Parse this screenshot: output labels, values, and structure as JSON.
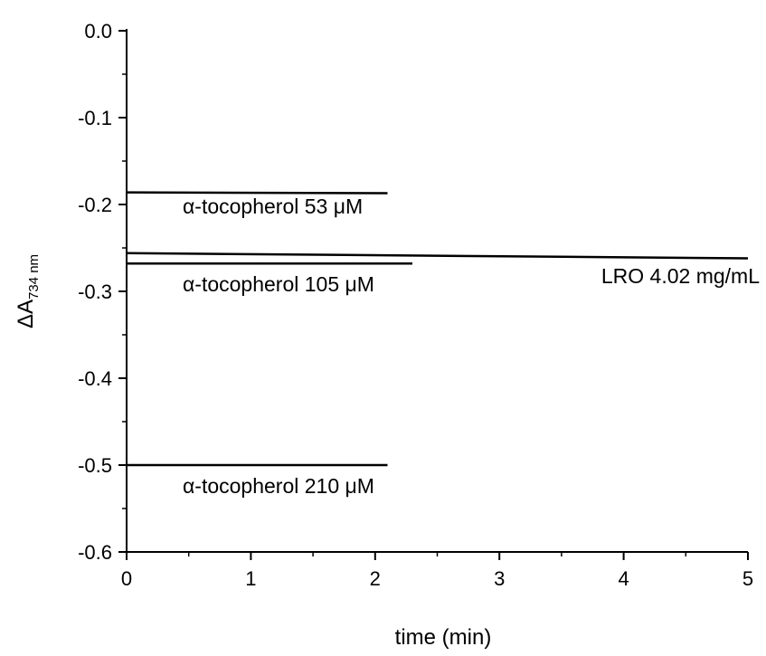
{
  "chart_data": {
    "type": "line",
    "title": "",
    "xlabel": "time (min)",
    "ylabel_main": "ΔA",
    "ylabel_sub": "734 nm",
    "xlim": [
      0,
      5
    ],
    "ylim": [
      -0.6,
      0.0
    ],
    "x_ticks": [
      0,
      1,
      2,
      3,
      4,
      5
    ],
    "x_tick_labels": [
      "0",
      "1",
      "2",
      "3",
      "4",
      "5"
    ],
    "y_ticks": [
      0.0,
      -0.1,
      -0.2,
      -0.3,
      -0.4,
      -0.5,
      -0.6
    ],
    "y_tick_labels": [
      "0.0",
      "-0.1",
      "-0.2",
      "-0.3",
      "-0.4",
      "-0.5",
      "-0.6"
    ],
    "grid": false,
    "series": [
      {
        "name": "α-tocopherol 53 μM",
        "x": [
          0,
          2.1
        ],
        "y": [
          -0.186,
          -0.187
        ]
      },
      {
        "name": "LRO 4.02 mg/mL",
        "x": [
          0,
          5
        ],
        "y": [
          -0.256,
          -0.262
        ]
      },
      {
        "name": "α-tocopherol 105 μM",
        "x": [
          0,
          2.3
        ],
        "y": [
          -0.268,
          -0.268
        ]
      },
      {
        "name": "α-tocopherol 210 μM",
        "x": [
          0,
          2.1
        ],
        "y": [
          -0.5,
          -0.5
        ]
      }
    ]
  }
}
